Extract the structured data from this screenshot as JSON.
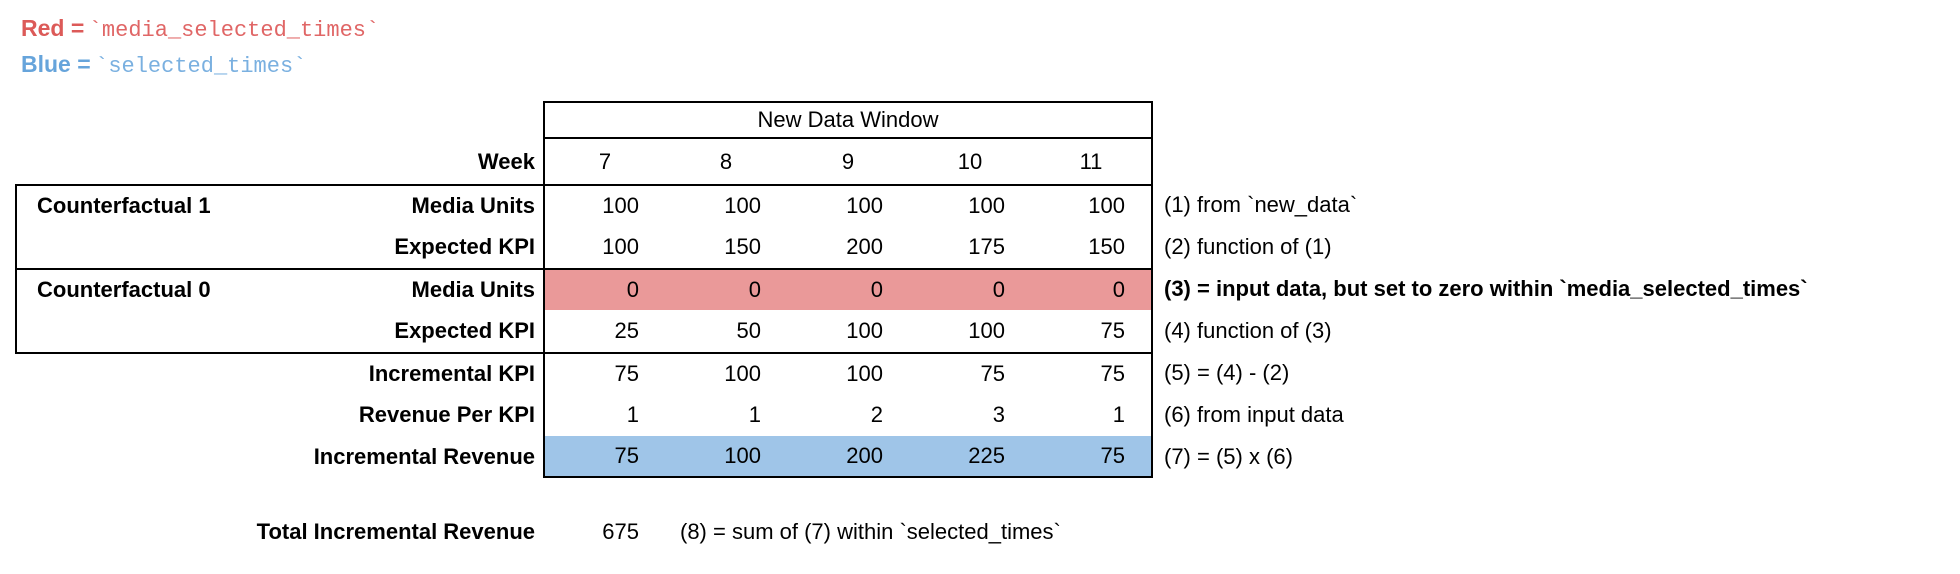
{
  "legend": {
    "red_label": "Red =",
    "red_code": "`media_selected_times`",
    "blue_label": "Blue =",
    "blue_code": "`selected_times`"
  },
  "colors": {
    "red_fill": "#ea9999",
    "blue_fill": "#9fc5e8",
    "red_label_text": "#dc5a58",
    "red_code_text": "#e06666",
    "blue_label_text": "#66a4db",
    "blue_code_text": "#7ab0e0"
  },
  "table": {
    "window_header": "New Data Window",
    "week_label": "Week",
    "weeks": [
      "7",
      "8",
      "9",
      "10",
      "11"
    ],
    "rows": [
      {
        "group": "Counterfactual 1",
        "label": "Media Units",
        "values": [
          "100",
          "100",
          "100",
          "100",
          "100"
        ],
        "annotation": "(1) from `new_data`"
      },
      {
        "group": "",
        "label": "Expected KPI",
        "values": [
          "100",
          "150",
          "200",
          "175",
          "150"
        ],
        "annotation": "(2) function of (1)"
      },
      {
        "group": "Counterfactual 0",
        "label": "Media Units",
        "values": [
          "0",
          "0",
          "0",
          "0",
          "0"
        ],
        "annotation": "(3) = input data, but set to zero within `media_selected_times`"
      },
      {
        "group": "",
        "label": "Expected KPI",
        "values": [
          "25",
          "50",
          "100",
          "100",
          "75"
        ],
        "annotation": "(4) function of (3)"
      },
      {
        "group": "",
        "label": "Incremental KPI",
        "values": [
          "75",
          "100",
          "100",
          "75",
          "75"
        ],
        "annotation": "(5) = (4) - (2)"
      },
      {
        "group": "",
        "label": "Revenue Per KPI",
        "values": [
          "1",
          "1",
          "2",
          "3",
          "1"
        ],
        "annotation": "(6) from input data"
      },
      {
        "group": "",
        "label": "Incremental Revenue",
        "values": [
          "75",
          "100",
          "200",
          "225",
          "75"
        ],
        "annotation": "(7) = (5) x (6)"
      }
    ]
  },
  "total": {
    "label": "Total Incremental Revenue",
    "value": "675",
    "note": "(8) = sum of (7) within `selected_times`"
  }
}
